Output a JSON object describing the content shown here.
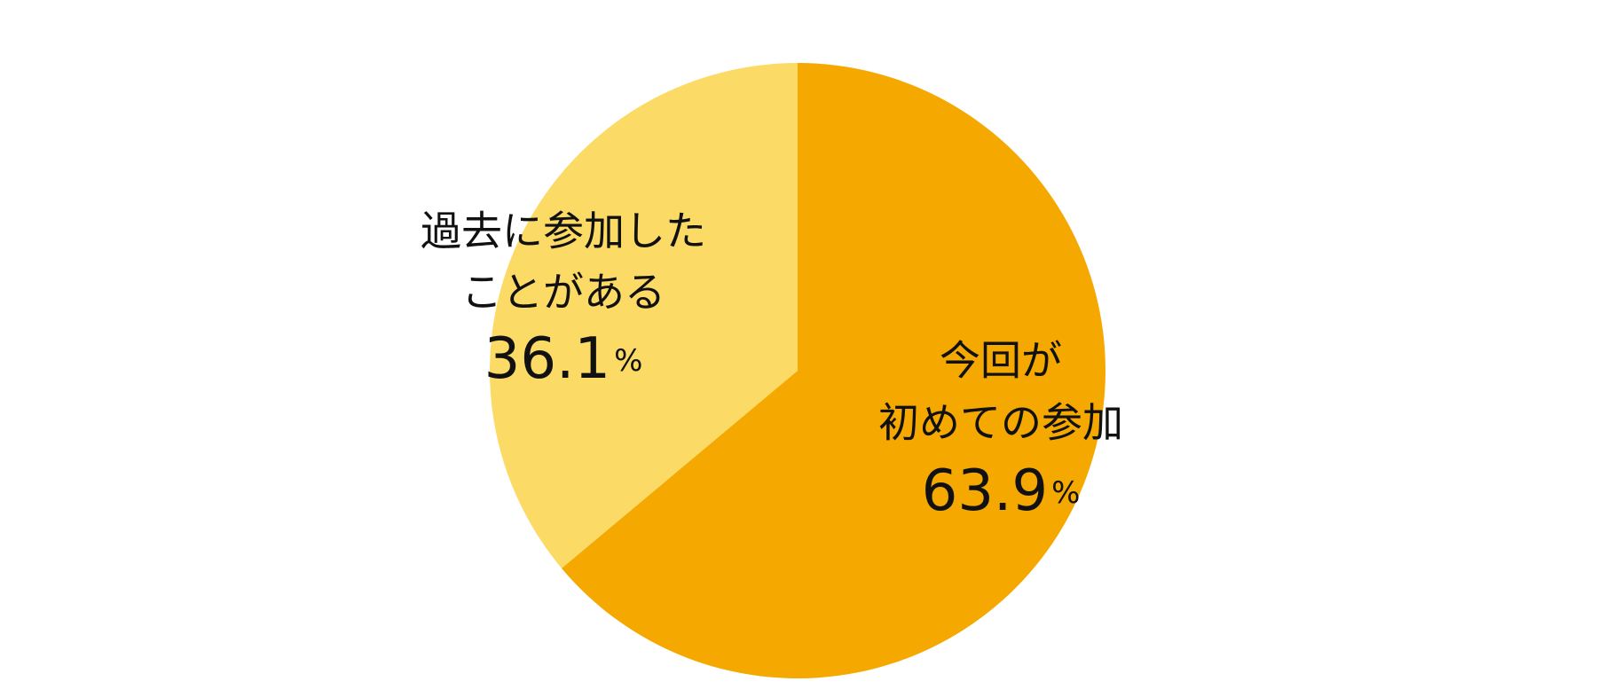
{
  "chart_data": {
    "type": "pie",
    "categories": [
      [
        "今回が",
        "初めての参加"
      ],
      [
        "過去に参加した",
        "ことがある"
      ]
    ],
    "values": [
      63.9,
      36.1
    ],
    "value_labels": [
      "63.9%",
      "36.1%"
    ],
    "colors": [
      "#f5a800",
      "#fcda66"
    ]
  }
}
